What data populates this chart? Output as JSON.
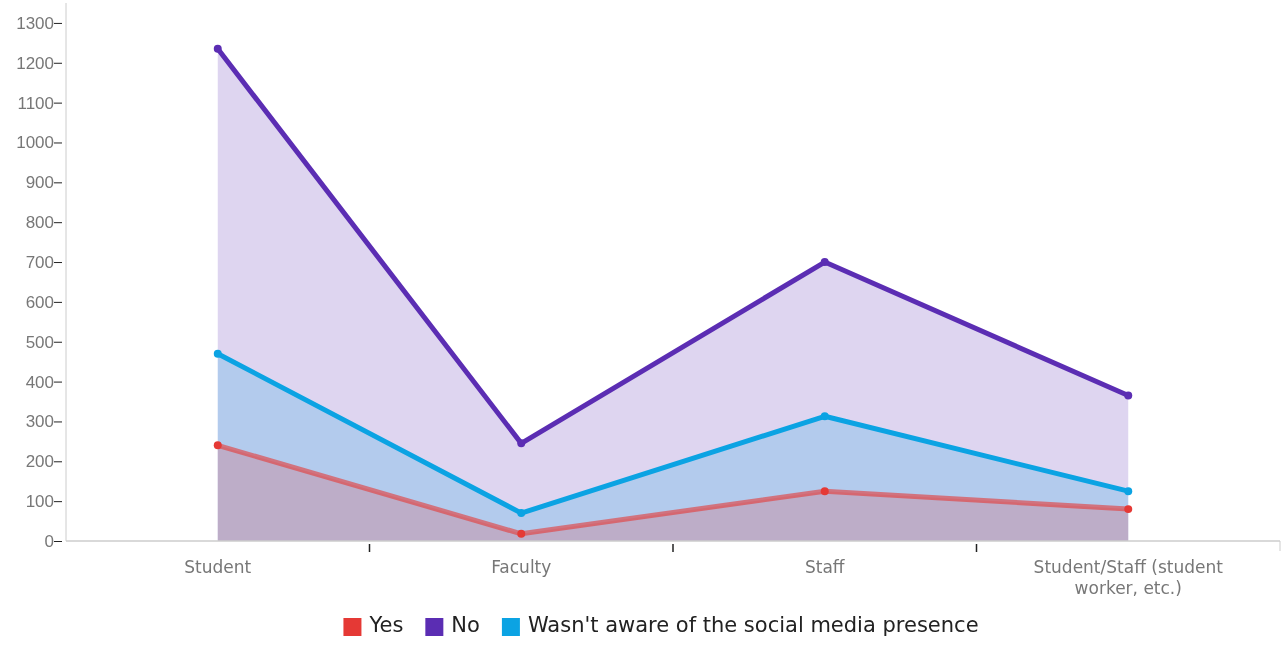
{
  "chart_data": {
    "type": "area",
    "categories": [
      "Student",
      "Faculty",
      "Staff",
      "Student/Staff (student worker, etc.)"
    ],
    "series": [
      {
        "name": "Yes",
        "color": "#e53935",
        "values": [
          240,
          18,
          125,
          80
        ]
      },
      {
        "name": "No",
        "color": "#5b2db3",
        "values": [
          1235,
          245,
          700,
          365
        ]
      },
      {
        "name": "Wasn't aware of the social media presence",
        "color": "#0ba3e3",
        "values": [
          470,
          70,
          313,
          125
        ]
      }
    ],
    "ylim": [
      0,
      1350
    ],
    "yticks": [
      0,
      100,
      200,
      300,
      400,
      500,
      600,
      700,
      800,
      900,
      1000,
      1100,
      1200,
      1300
    ],
    "grid": false,
    "legend": "bottom",
    "marker": "circle",
    "line_style": "solid"
  }
}
